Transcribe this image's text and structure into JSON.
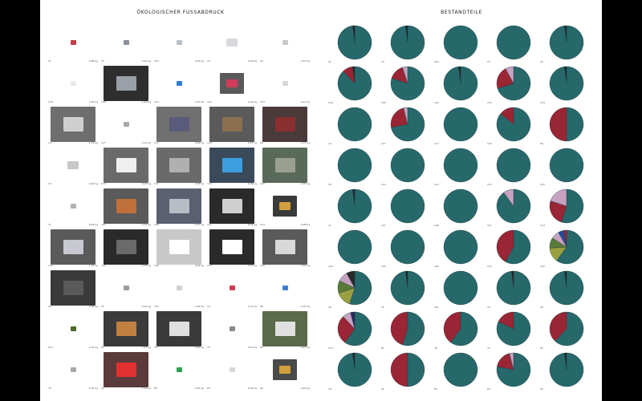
{
  "left_page": {
    "title": "ÖKOLOGISCHER FUSSABDRUCK",
    "items": [
      {
        "id": "47",
        "value": "3,88 kg",
        "bg": "#ffffff",
        "trash": "#c23b4a",
        "photo": "small"
      },
      {
        "id": "33",
        "value": "0,22 kg",
        "bg": "#ffffff",
        "trash": "#8a8f99",
        "photo": "small"
      },
      {
        "id": "103",
        "value": "0,03 kg",
        "bg": "#ffffff",
        "trash": "#b9bfc8",
        "photo": "small"
      },
      {
        "id": "23",
        "value": "0,18 kg",
        "bg": "#ffffff",
        "trash": "#d7d9dd",
        "photo": "medium"
      },
      {
        "id": "20",
        "value": "2,47 kg",
        "bg": "#ffffff",
        "trash": "#c6c8cc",
        "photo": "small"
      },
      {
        "id": "118",
        "value": "0,09 kg",
        "bg": "#ffffff",
        "trash": "#e8e8e8",
        "photo": "small"
      },
      {
        "id": "120",
        "value": "1,44 kg",
        "bg": "#2e2e2e",
        "trash": "#9aa0a8",
        "photo": "large"
      },
      {
        "id": "122",
        "value": "0,15 kg",
        "bg": "#ffffff",
        "trash": "#2f7fd0",
        "photo": "small"
      },
      {
        "id": "119",
        "value": "2,09 kg",
        "bg": "#5a5a5a",
        "trash": "#d23a5a",
        "photo": "medium"
      },
      {
        "id": "124",
        "value": "0,12 kg",
        "bg": "#ffffff",
        "trash": "#d8d8d8",
        "photo": "small"
      },
      {
        "id": "14",
        "value": "1,21 kg",
        "bg": "#6e6e6e",
        "trash": "#cfcfcf",
        "photo": "large"
      },
      {
        "id": "127",
        "value": "0,14 kg",
        "bg": "#ffffff",
        "trash": "#a8a8a8",
        "photo": "small"
      },
      {
        "id": "117",
        "value": "0,09 kg",
        "bg": "#707070",
        "trash": "#5a5a7a",
        "photo": "large"
      },
      {
        "id": "129",
        "value": "0,25 kg",
        "bg": "#5a5a5a",
        "trash": "#8a7050",
        "photo": "large"
      },
      {
        "id": "60",
        "value": "1,72 kg",
        "bg": "#4a3a3a",
        "trash": "#8a2f2f",
        "photo": "large"
      },
      {
        "id": "34",
        "value": "0,40 kg",
        "bg": "#ffffff",
        "trash": "#c8c8c8",
        "photo": "medium"
      },
      {
        "id": "110",
        "value": "0,07 kg",
        "bg": "#6a6a6a",
        "trash": "#efefef",
        "photo": "large"
      },
      {
        "id": "112",
        "value": "0,03 kg",
        "bg": "#6a6a6a",
        "trash": "#b0b0b0",
        "photo": "large"
      },
      {
        "id": "113",
        "value": "0,06 kg",
        "bg": "#3a4a5a",
        "trash": "#3c9fe0",
        "photo": "large"
      },
      {
        "id": "116",
        "value": "0,05 kg",
        "bg": "#5a6a5a",
        "trash": "#9aa090",
        "photo": "large"
      },
      {
        "id": "71",
        "value": "0,84 kg",
        "bg": "#ffffff",
        "trash": "#b0b0b0",
        "photo": "small"
      },
      {
        "id": "107",
        "value": "2,31 kg",
        "bg": "#5a5a5a",
        "trash": "#c0703a",
        "photo": "large"
      },
      {
        "id": "108",
        "value": "0,47 kg",
        "bg": "#5a6070",
        "trash": "#b8bcc4",
        "photo": "large"
      },
      {
        "id": "111",
        "value": "0,06 kg",
        "bg": "#2a2a2a",
        "trash": "#cfcfcf",
        "photo": "large"
      },
      {
        "id": "114",
        "value": "0,08 kg",
        "bg": "#3a3a3a",
        "trash": "#d0a040",
        "photo": "medium"
      },
      {
        "id": "104",
        "value": "1,10 kg",
        "bg": "#5a5a5a",
        "trash": "#c8c8d0",
        "photo": "large"
      },
      {
        "id": "105",
        "value": "0,13 kg",
        "bg": "#2a2a2a",
        "trash": "#6a6a6a",
        "photo": "large"
      },
      {
        "id": "109",
        "value": "0,04 kg",
        "bg": "#c8c8c8",
        "trash": "#ffffff",
        "photo": "large"
      },
      {
        "id": "115",
        "value": "0,01 kg",
        "bg": "#2a2a2a",
        "trash": "#ffffff",
        "photo": "large"
      },
      {
        "id": "102",
        "value": "1,54 kg",
        "bg": "#5a5a5a",
        "trash": "#d8d8d8",
        "photo": "large"
      },
      {
        "id": "29",
        "value": "0,30 kg",
        "bg": "#3a3a3a",
        "trash": "#5a5a5a",
        "photo": "large"
      },
      {
        "id": "31",
        "value": "0,22 kg",
        "bg": "#ffffff",
        "trash": "#9a9a9a",
        "photo": "small"
      },
      {
        "id": "121",
        "value": "0,09 kg",
        "bg": "#ffffff",
        "trash": "#d0d0d0",
        "photo": "small"
      },
      {
        "id": "19",
        "value": "0,13 kg",
        "bg": "#ffffff",
        "trash": "#d23a5a",
        "photo": "small"
      },
      {
        "id": "98",
        "value": "0,02 kg",
        "bg": "#ffffff",
        "trash": "#3f7fd0",
        "photo": "small"
      },
      {
        "id": "112",
        "value": "0,19 kg",
        "bg": "#ffffff",
        "trash": "#4a6a2a",
        "photo": "small"
      },
      {
        "id": "81",
        "value": "1,53 kg",
        "bg": "#3a3a3a",
        "trash": "#c08040",
        "photo": "large"
      },
      {
        "id": "78",
        "value": "0,44 kg",
        "bg": "#3a3a3a",
        "trash": "#e0e0e0",
        "photo": "large"
      },
      {
        "id": "75",
        "value": "0,41 kg",
        "bg": "#ffffff",
        "trash": "#8a8a8a",
        "photo": "small"
      },
      {
        "id": "92",
        "value": "0,41 kg",
        "bg": "#5a6a4a",
        "trash": "#e0e0e0",
        "photo": "large"
      },
      {
        "id": "34",
        "value": "0,20 kg",
        "bg": "#ffffff",
        "trash": "#a8a8a8",
        "photo": "small"
      },
      {
        "id": "91",
        "value": "1,19 kg",
        "bg": "#5a3a3a",
        "trash": "#e03030",
        "photo": "large"
      },
      {
        "id": "89",
        "value": "0,05 kg",
        "bg": "#ffffff",
        "trash": "#2fa050",
        "photo": "small"
      },
      {
        "id": "84",
        "value": "0,03 kg",
        "bg": "#ffffff",
        "trash": "#d8d8d8",
        "photo": "small"
      },
      {
        "id": "90",
        "value": "0,45 kg",
        "bg": "#4a4a4a",
        "trash": "#d0a040",
        "photo": "medium"
      }
    ]
  },
  "right_page": {
    "title": "BESTANDTEILE",
    "pies": [
      {
        "id": "47",
        "slices": [
          {
            "v": 0.98,
            "c": "#27686b"
          },
          {
            "v": 0.02,
            "c": "#222222"
          }
        ]
      },
      {
        "id": "33",
        "slices": [
          {
            "v": 0.98,
            "c": "#27686b"
          },
          {
            "v": 0.02,
            "c": "#222222"
          }
        ]
      },
      {
        "id": "103",
        "slices": [
          {
            "v": 1.0,
            "c": "#27686b"
          }
        ]
      },
      {
        "id": "23",
        "slices": [
          {
            "v": 1.0,
            "c": "#27686b"
          }
        ]
      },
      {
        "id": "20",
        "slices": [
          {
            "v": 0.98,
            "c": "#27686b"
          },
          {
            "v": 0.02,
            "c": "#222222"
          }
        ]
      },
      {
        "id": "118",
        "slices": [
          {
            "v": 0.88,
            "c": "#27686b"
          },
          {
            "v": 0.1,
            "c": "#9a2535"
          },
          {
            "v": 0.02,
            "c": "#222222"
          }
        ]
      },
      {
        "id": "120",
        "slices": [
          {
            "v": 0.8,
            "c": "#27686b"
          },
          {
            "v": 0.15,
            "c": "#9a2535"
          },
          {
            "v": 0.05,
            "c": "#c6a2c0"
          }
        ]
      },
      {
        "id": "122",
        "slices": [
          {
            "v": 0.98,
            "c": "#27686b"
          },
          {
            "v": 0.02,
            "c": "#222222"
          }
        ]
      },
      {
        "id": "119",
        "slices": [
          {
            "v": 0.7,
            "c": "#27686b"
          },
          {
            "v": 0.22,
            "c": "#9a2535"
          },
          {
            "v": 0.08,
            "c": "#c6a2c0"
          }
        ]
      },
      {
        "id": "124",
        "slices": [
          {
            "v": 0.98,
            "c": "#27686b"
          },
          {
            "v": 0.02,
            "c": "#222222"
          }
        ]
      },
      {
        "id": "14",
        "slices": [
          {
            "v": 1.0,
            "c": "#27686b"
          }
        ]
      },
      {
        "id": "127",
        "slices": [
          {
            "v": 0.72,
            "c": "#27686b"
          },
          {
            "v": 0.24,
            "c": "#9a2535"
          },
          {
            "v": 0.04,
            "c": "#c6a2c0"
          }
        ]
      },
      {
        "id": "117",
        "slices": [
          {
            "v": 1.0,
            "c": "#27686b"
          }
        ]
      },
      {
        "id": "129",
        "slices": [
          {
            "v": 0.86,
            "c": "#27686b"
          },
          {
            "v": 0.14,
            "c": "#9a2535"
          }
        ]
      },
      {
        "id": "60",
        "slices": [
          {
            "v": 0.5,
            "c": "#27686b"
          },
          {
            "v": 0.5,
            "c": "#9a2535"
          }
        ]
      },
      {
        "id": "34",
        "slices": [
          {
            "v": 1.0,
            "c": "#27686b"
          }
        ]
      },
      {
        "id": "110",
        "slices": [
          {
            "v": 1.0,
            "c": "#27686b"
          }
        ]
      },
      {
        "id": "112",
        "slices": [
          {
            "v": 1.0,
            "c": "#27686b"
          }
        ]
      },
      {
        "id": "113",
        "slices": [
          {
            "v": 1.0,
            "c": "#27686b"
          }
        ]
      },
      {
        "id": "116",
        "slices": [
          {
            "v": 1.0,
            "c": "#27686b"
          }
        ]
      },
      {
        "id": "71",
        "slices": [
          {
            "v": 0.98,
            "c": "#27686b"
          },
          {
            "v": 0.02,
            "c": "#222222"
          }
        ]
      },
      {
        "id": "107",
        "slices": [
          {
            "v": 1.0,
            "c": "#27686b"
          }
        ]
      },
      {
        "id": "108",
        "slices": [
          {
            "v": 1.0,
            "c": "#27686b"
          }
        ]
      },
      {
        "id": "111",
        "slices": [
          {
            "v": 0.9,
            "c": "#27686b"
          },
          {
            "v": 0.1,
            "c": "#c6a2c0"
          }
        ]
      },
      {
        "id": "114",
        "slices": [
          {
            "v": 0.55,
            "c": "#27686b"
          },
          {
            "v": 0.25,
            "c": "#9a2535"
          },
          {
            "v": 0.2,
            "c": "#c6a2c0"
          }
        ]
      },
      {
        "id": "104",
        "slices": [
          {
            "v": 1.0,
            "c": "#27686b"
          }
        ]
      },
      {
        "id": "105",
        "slices": [
          {
            "v": 1.0,
            "c": "#27686b"
          }
        ]
      },
      {
        "id": "109",
        "slices": [
          {
            "v": 1.0,
            "c": "#27686b"
          }
        ]
      },
      {
        "id": "115",
        "slices": [
          {
            "v": 0.58,
            "c": "#27686b"
          },
          {
            "v": 0.42,
            "c": "#9a2535"
          }
        ]
      },
      {
        "id": "102",
        "slices": [
          {
            "v": 0.6,
            "c": "#27686b"
          },
          {
            "v": 0.14,
            "c": "#9aa040"
          },
          {
            "v": 0.1,
            "c": "#5a7a3a"
          },
          {
            "v": 0.08,
            "c": "#c6a2c0"
          },
          {
            "v": 0.05,
            "c": "#2a4a9a"
          },
          {
            "v": 0.03,
            "c": "#9a2535"
          }
        ]
      },
      {
        "id": "29",
        "slices": [
          {
            "v": 0.55,
            "c": "#27686b"
          },
          {
            "v": 0.15,
            "c": "#9aa040"
          },
          {
            "v": 0.12,
            "c": "#5a7a3a"
          },
          {
            "v": 0.1,
            "c": "#c6a2c0"
          },
          {
            "v": 0.08,
            "c": "#2a2a2a"
          }
        ]
      },
      {
        "id": "31",
        "slices": [
          {
            "v": 0.98,
            "c": "#27686b"
          },
          {
            "v": 0.02,
            "c": "#222222"
          }
        ]
      },
      {
        "id": "121",
        "slices": [
          {
            "v": 1.0,
            "c": "#27686b"
          }
        ]
      },
      {
        "id": "19",
        "slices": [
          {
            "v": 0.98,
            "c": "#27686b"
          },
          {
            "v": 0.02,
            "c": "#222222"
          }
        ]
      },
      {
        "id": "98",
        "slices": [
          {
            "v": 0.98,
            "c": "#27686b"
          },
          {
            "v": 0.02,
            "c": "#222222"
          }
        ]
      },
      {
        "id": "112",
        "slices": [
          {
            "v": 0.6,
            "c": "#27686b"
          },
          {
            "v": 0.28,
            "c": "#9a2535"
          },
          {
            "v": 0.08,
            "c": "#c6a2c0"
          },
          {
            "v": 0.04,
            "c": "#2a2a5a"
          }
        ]
      },
      {
        "id": "81",
        "slices": [
          {
            "v": 0.55,
            "c": "#27686b"
          },
          {
            "v": 0.45,
            "c": "#9a2535"
          }
        ]
      },
      {
        "id": "78",
        "slices": [
          {
            "v": 0.6,
            "c": "#27686b"
          },
          {
            "v": 0.4,
            "c": "#9a2535"
          }
        ]
      },
      {
        "id": "75",
        "slices": [
          {
            "v": 0.82,
            "c": "#27686b"
          },
          {
            "v": 0.18,
            "c": "#9a2535"
          }
        ]
      },
      {
        "id": "92",
        "slices": [
          {
            "v": 0.62,
            "c": "#27686b"
          },
          {
            "v": 0.38,
            "c": "#9a2535"
          }
        ]
      },
      {
        "id": "34",
        "slices": [
          {
            "v": 0.98,
            "c": "#27686b"
          },
          {
            "v": 0.02,
            "c": "#222222"
          }
        ]
      },
      {
        "id": "91",
        "slices": [
          {
            "v": 0.5,
            "c": "#27686b"
          },
          {
            "v": 0.5,
            "c": "#9a2535"
          }
        ]
      },
      {
        "id": "89",
        "slices": [
          {
            "v": 1.0,
            "c": "#27686b"
          }
        ]
      },
      {
        "id": "84",
        "slices": [
          {
            "v": 0.78,
            "c": "#27686b"
          },
          {
            "v": 0.18,
            "c": "#9a2535"
          },
          {
            "v": 0.04,
            "c": "#c6a2c0"
          }
        ]
      },
      {
        "id": "90",
        "slices": [
          {
            "v": 0.98,
            "c": "#27686b"
          },
          {
            "v": 0.02,
            "c": "#222222"
          }
        ]
      }
    ]
  }
}
